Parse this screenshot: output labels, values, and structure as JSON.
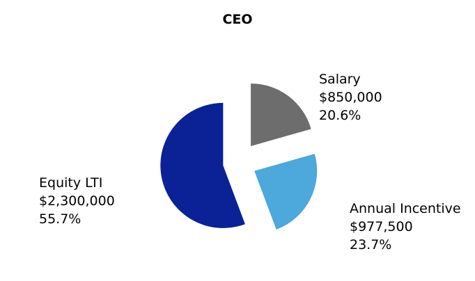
{
  "chart_data": {
    "type": "pie",
    "title": "CEO",
    "slices": [
      {
        "label": "Salary",
        "amount": "$850,000",
        "value": 20.6,
        "percent_label": "20.6%",
        "color": "#6d6d6d"
      },
      {
        "label": "Annual Incentive",
        "amount": "$977,500",
        "value": 23.7,
        "percent_label": "23.7%",
        "color": "#4da8db"
      },
      {
        "label": "Equity LTI",
        "amount": "$2,300,000",
        "value": 55.7,
        "percent_label": "55.7%",
        "color": "#0a2296"
      }
    ],
    "start_angle_deg": 0,
    "direction": "clockwise",
    "exploded": true
  }
}
